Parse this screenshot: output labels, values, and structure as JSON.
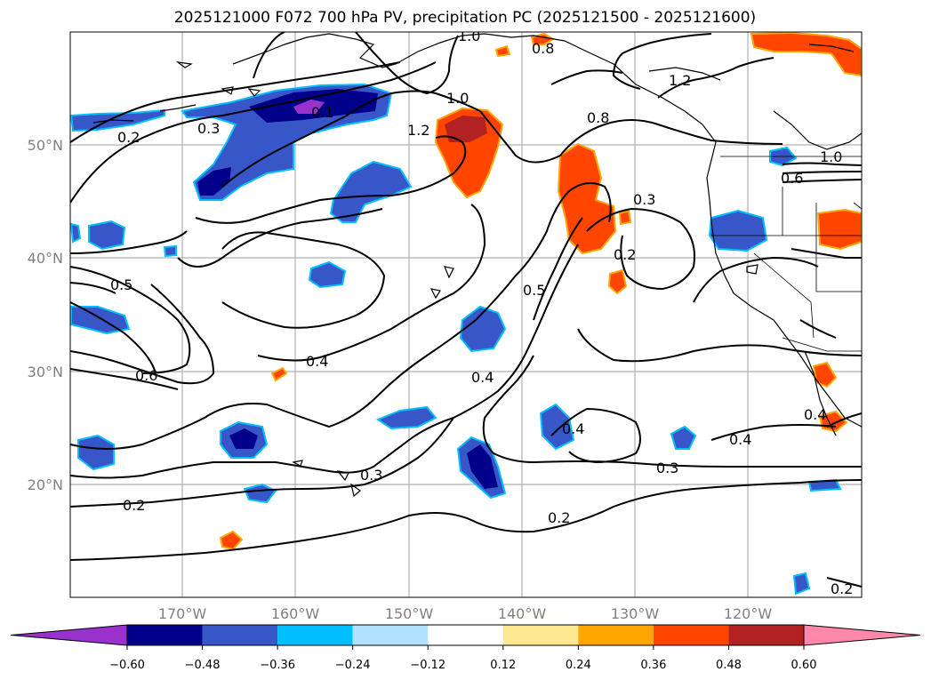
{
  "title": "2025121000 F072 700 hPa PV, precipitation PC (2025121500 - 2025121600)",
  "map": {
    "lon_range": [
      -180,
      -110
    ],
    "lat_range": [
      10,
      60
    ],
    "lon_ticks": [
      {
        "lon": -170,
        "label": "170°W"
      },
      {
        "lon": -160,
        "label": "160°W"
      },
      {
        "lon": -150,
        "label": "150°W"
      },
      {
        "lon": -140,
        "label": "140°W"
      },
      {
        "lon": -130,
        "label": "130°W"
      },
      {
        "lon": -120,
        "label": "120°W"
      }
    ],
    "lat_ticks": [
      {
        "lat": 50,
        "label": "50°N"
      },
      {
        "lat": 40,
        "label": "40°N"
      },
      {
        "lat": 30,
        "label": "30°N"
      },
      {
        "lat": 20,
        "label": "20°N"
      }
    ],
    "grid": true
  },
  "contour_labels": [
    "0.2",
    "0.3",
    "0.1",
    "1.0",
    "1.2",
    "0.8",
    "1.0",
    "1.2",
    "0.8",
    "0.3",
    "0.2",
    "0.5",
    "0.5",
    "0.6",
    "0.4",
    "0.4",
    "0.4",
    "0.3",
    "0.2",
    "0.3",
    "0.4",
    "0.2",
    "0.2",
    "1.0",
    "0.6",
    "0.4"
  ],
  "colorbar": {
    "colors": [
      "#9932cc",
      "#00008b",
      "#3757c8",
      "#00bfff",
      "#b0e2ff",
      "#ffffff",
      "#ffe891",
      "#ffa500",
      "#ff4500",
      "#b22222",
      "#ff88aa"
    ],
    "ticks": [
      "−0.60",
      "−0.48",
      "−0.36",
      "−0.24",
      "−0.12",
      "0.12",
      "0.24",
      "0.36",
      "0.48",
      "0.60"
    ],
    "extend": "both"
  }
}
